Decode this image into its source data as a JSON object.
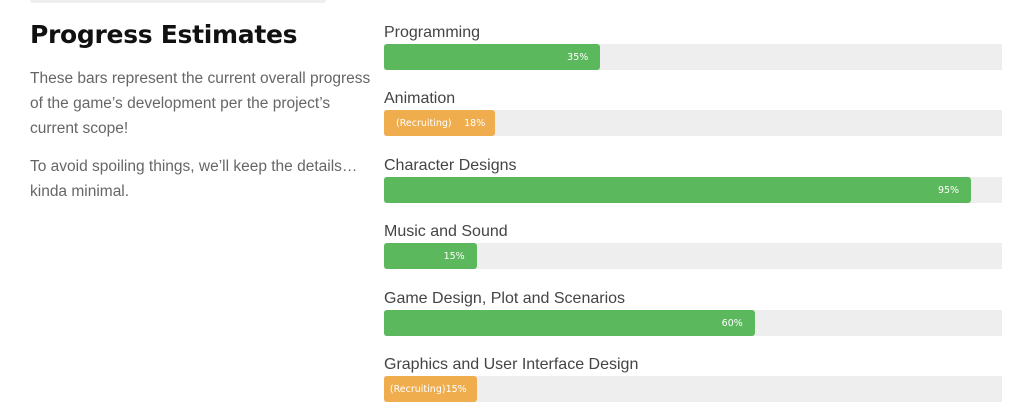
{
  "intro": {
    "title": "Progress Estimates",
    "paragraph1": "These bars represent the current overall progress of the game’s development per the project’s current scope!",
    "paragraph2": "To avoid spoiling things, we’ll keep the details… kinda minimal."
  },
  "colors": {
    "green": "#5cb85c",
    "orange": "#f0ad4e",
    "track": "#eeeeee"
  },
  "bars": [
    {
      "label": "Programming",
      "value": 35,
      "value_text": "35%",
      "note": "",
      "color": "#5cb85c"
    },
    {
      "label": "Animation",
      "value": 18,
      "value_text": "18%",
      "note": "(Recruiting)",
      "color": "#f0ad4e"
    },
    {
      "label": "Character Designs",
      "value": 95,
      "value_text": "95%",
      "note": "",
      "color": "#5cb85c"
    },
    {
      "label": "Music and Sound",
      "value": 15,
      "value_text": "15%",
      "note": "",
      "color": "#5cb85c"
    },
    {
      "label": "Game Design, Plot and Scenarios",
      "value": 60,
      "value_text": "60%",
      "note": "",
      "color": "#5cb85c"
    },
    {
      "label": "Graphics and User Interface Design",
      "value": 15,
      "value_text": "15%",
      "note": "(Recruiting)",
      "color": "#f0ad4e"
    }
  ]
}
